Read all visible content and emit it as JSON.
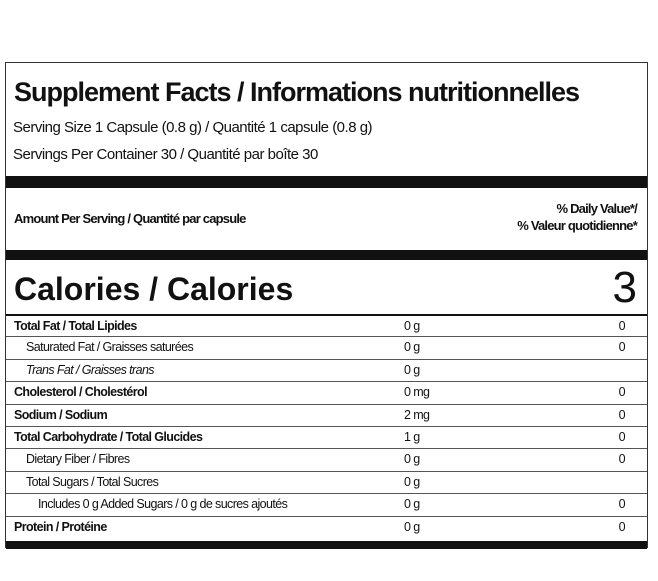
{
  "header": {
    "title": "Supplement Facts / Informations nutritionnelles",
    "serving_size": "Serving Size 1 Capsule (0.8 g) / Quantité 1 capsule (0.8 g)",
    "servings_per_container": "Servings Per Container 30 / Quantité par boîte 30"
  },
  "columns": {
    "amount_per_serving": "Amount Per Serving / Quantité par capsule",
    "daily_value": "% Daily Value*/",
    "daily_value_fr": "% Valeur quotidienne*"
  },
  "calories": {
    "label": "Calories / Calories",
    "value": 3
  },
  "nutrients": [
    {
      "name": "Total Fat / Total Lipides",
      "amount": "0 g",
      "daily_value": 0
    },
    {
      "name": "Saturated Fat / Graisses saturées",
      "amount": "0 g",
      "daily_value": 0
    },
    {
      "name": "Trans Fat / Graisses trans",
      "amount": "0 g"
    },
    {
      "name": "Cholesterol / Cholestérol",
      "amount": "0 mg",
      "daily_value": 0
    },
    {
      "name": "Sodium / Sodium",
      "amount": "2 mg",
      "daily_value": 0
    },
    {
      "name": "Total Carbohydrate / Total Glucides",
      "amount": "1 g",
      "daily_value": 0
    },
    {
      "name": "Dietary Fiber / Fibres",
      "amount": "0 g",
      "daily_value": 0
    },
    {
      "name": "Total Sugars / Total Sucres",
      "amount": "0 g"
    },
    {
      "name": "Includes 0 g Added Sugars / 0 g de sucres ajoutés",
      "amount": "0 g",
      "daily_value": 0
    },
    {
      "name": "Protein / Protéine",
      "amount": "0 g",
      "daily_value": 0
    }
  ]
}
